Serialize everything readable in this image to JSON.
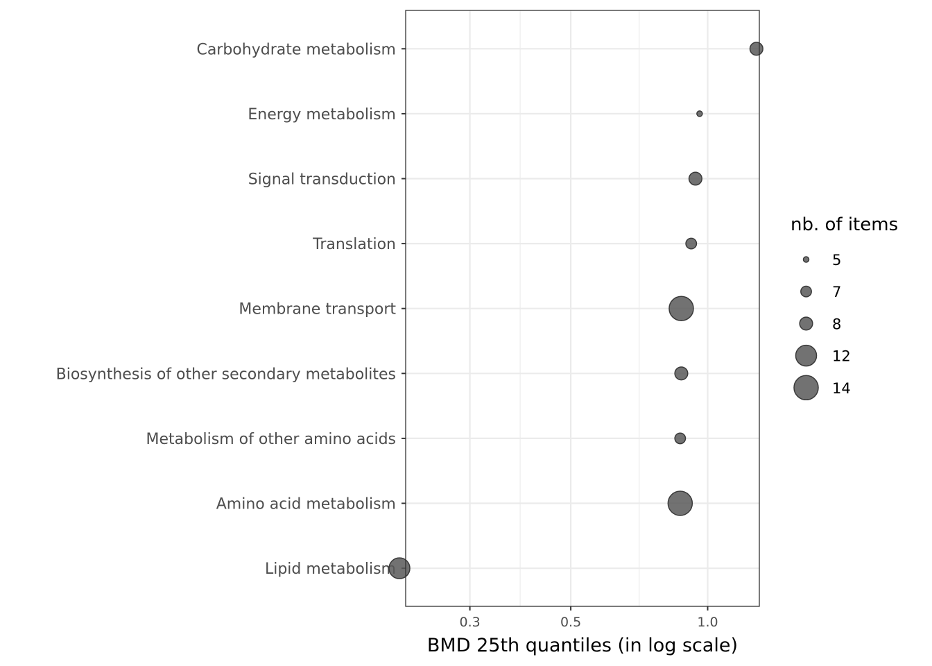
{
  "chart_data": {
    "type": "scatter",
    "title": "",
    "xlabel": "BMD 25th quantiles (in log scale)",
    "ylabel": "",
    "x_scale": "log10",
    "xlim": [
      0.2,
      1.4
    ],
    "x_ticks": [
      {
        "value": 0.3,
        "label": "0.3"
      },
      {
        "value": 0.5,
        "label": "0.5"
      },
      {
        "value": 1.0,
        "label": "1.0"
      }
    ],
    "x_minor_ticks": [
      0.387,
      0.707
    ],
    "categories": [
      "Carbohydrate metabolism",
      "Energy metabolism",
      "Signal transduction",
      "Translation",
      "Membrane transport",
      "Biosynthesis of other secondary metabolites",
      "Metabolism of other amino acids",
      "Amino acid metabolism",
      "Lipid metabolism"
    ],
    "points": [
      {
        "category": "Carbohydrate metabolism",
        "x": 1.28,
        "size": 8
      },
      {
        "category": "Energy metabolism",
        "x": 0.96,
        "size": 5
      },
      {
        "category": "Signal transduction",
        "x": 0.94,
        "size": 8
      },
      {
        "category": "Translation",
        "x": 0.92,
        "size": 7
      },
      {
        "category": "Membrane transport",
        "x": 0.875,
        "size": 14
      },
      {
        "category": "Biosynthesis of other secondary metabolites",
        "x": 0.875,
        "size": 8
      },
      {
        "category": "Metabolism of other amino acids",
        "x": 0.87,
        "size": 7
      },
      {
        "category": "Amino acid metabolism",
        "x": 0.87,
        "size": 14
      },
      {
        "category": "Lipid metabolism",
        "x": 0.21,
        "size": 12
      }
    ],
    "legend": {
      "title": "nb. of items",
      "position": "right",
      "entries": [
        {
          "label": "5",
          "size": 5
        },
        {
          "label": "7",
          "size": 7
        },
        {
          "label": "8",
          "size": 8
        },
        {
          "label": "12",
          "size": 12
        },
        {
          "label": "14",
          "size": 14
        }
      ]
    },
    "grid": true,
    "point_color": "#595959",
    "point_stroke": "#3a3a3a",
    "grid_color": "#ebebeb",
    "panel_border_color": "#333333"
  }
}
